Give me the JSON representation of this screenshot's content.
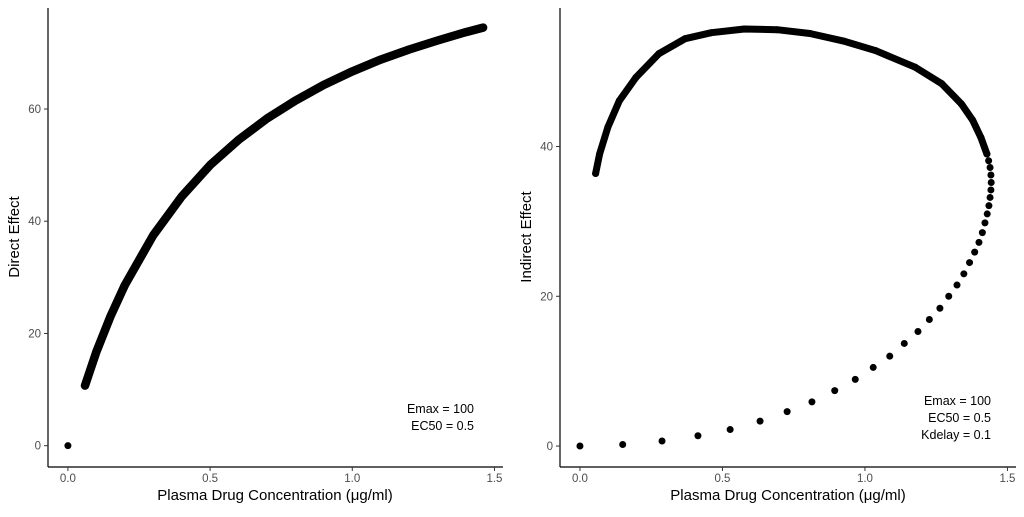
{
  "chart_data": [
    {
      "type": "scatter",
      "xlabel": "Plasma Drug Concentration (μg/ml)",
      "ylabel": "Direct Effect",
      "xlim": [
        -0.07,
        1.53
      ],
      "ylim": [
        -3.8,
        78
      ],
      "xticks": [
        "0.0",
        "0.5",
        "1.0",
        "1.5"
      ],
      "yticks": [
        "0",
        "20",
        "40",
        "60"
      ],
      "grid": false,
      "annotations": [
        "Emax = 100",
        "EC50 = 0.5"
      ],
      "color": "#000000",
      "x": [
        0,
        0.06,
        0.1,
        0.15,
        0.2,
        0.3,
        0.4,
        0.5,
        0.6,
        0.7,
        0.8,
        0.9,
        1.0,
        1.1,
        1.2,
        1.3,
        1.4,
        1.46
      ],
      "y": [
        0,
        10.7,
        16.7,
        23.1,
        28.6,
        37.5,
        44.4,
        50,
        54.5,
        58.3,
        61.5,
        64.3,
        66.7,
        68.8,
        70.6,
        72.2,
        73.7,
        74.5
      ]
    },
    {
      "type": "scatter",
      "xlabel": "Plasma Drug Concentration (μg/ml)",
      "ylabel": "Indirect Effect",
      "xlim": [
        -0.07,
        1.53
      ],
      "ylim": [
        -2.8,
        58.5
      ],
      "xticks": [
        "0.0",
        "0.5",
        "1.0",
        "1.5"
      ],
      "yticks": [
        "0",
        "20",
        "40"
      ],
      "grid": false,
      "annotations": [
        "Emax = 100",
        "EC50 = 0.5",
        "Kdelay = 0.1"
      ],
      "color": "#000000",
      "x": [
        0,
        0.15,
        0.288,
        0.414,
        0.527,
        0.632,
        0.727,
        0.814,
        0.894,
        0.966,
        1.029,
        1.087,
        1.138,
        1.186,
        1.226,
        1.263,
        1.294,
        1.323,
        1.347,
        1.367,
        1.385,
        1.4,
        1.412,
        1.421,
        1.429,
        1.435,
        1.439,
        1.442,
        1.443,
        1.442,
        1.439,
        1.434,
        1.428,
        1.407,
        1.378,
        1.338,
        1.269,
        1.176,
        1.038,
        0.923,
        0.807,
        0.692,
        0.577,
        0.461,
        0.369,
        0.277,
        0.196,
        0.138,
        0.098,
        0.069,
        0.055
      ],
      "y": [
        0,
        0.2,
        0.67,
        1.37,
        2.2,
        3.33,
        4.6,
        5.9,
        7.4,
        8.9,
        10.5,
        12.0,
        13.7,
        15.3,
        16.9,
        18.4,
        20.0,
        21.5,
        23.0,
        24.5,
        25.9,
        27.2,
        28.5,
        29.8,
        31.0,
        32.1,
        33.2,
        34.2,
        35.2,
        36.2,
        37.2,
        38.1,
        39.0,
        41.2,
        43.5,
        45.7,
        48.4,
        50.6,
        52.8,
        54.1,
        55.1,
        55.6,
        55.7,
        55.2,
        54.4,
        52.4,
        49.2,
        46.1,
        42.6,
        39.0,
        36.4
      ],
      "dense_from_index": 33
    }
  ]
}
